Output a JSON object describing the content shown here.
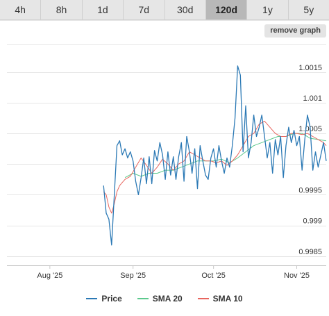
{
  "tabs": [
    {
      "label": "4h",
      "active": false
    },
    {
      "label": "8h",
      "active": false
    },
    {
      "label": "1d",
      "active": false
    },
    {
      "label": "7d",
      "active": false
    },
    {
      "label": "30d",
      "active": false
    },
    {
      "label": "120d",
      "active": true
    },
    {
      "label": "1y",
      "active": false
    },
    {
      "label": "5y",
      "active": false
    }
  ],
  "remove_graph_label": "remove graph",
  "chart_data": {
    "type": "line",
    "x_ticks": [
      "Aug '25",
      "Sep '25",
      "Oct '25",
      "Nov '25"
    ],
    "y_ticks": [
      0.9985,
      0.999,
      0.9995,
      1.0005,
      1.001,
      1.0015
    ],
    "y_tick_labels": [
      "0.9985",
      "0.999",
      "0.9995",
      "1.0005",
      "1.001",
      "1.0015"
    ],
    "ylim": [
      0.99835,
      1.00195
    ],
    "xlim": [
      "2025-07-16",
      "2025-11-12"
    ],
    "grid": true,
    "legend_position": "bottom",
    "series": [
      {
        "name": "Price",
        "color": "#2b79b5",
        "points": [
          [
            "2025-08-21",
            0.99965
          ],
          [
            "2025-08-22",
            0.9992
          ],
          [
            "2025-08-23",
            0.9991
          ],
          [
            "2025-08-24",
            0.99868
          ],
          [
            "2025-08-25",
            0.99948
          ],
          [
            "2025-08-26",
            1.0003
          ],
          [
            "2025-08-27",
            1.00038
          ],
          [
            "2025-08-28",
            1.00015
          ],
          [
            "2025-08-29",
            1.00025
          ],
          [
            "2025-08-30",
            1.0001
          ],
          [
            "2025-08-31",
            1.0002
          ],
          [
            "2025-09-01",
            1.00005
          ],
          [
            "2025-09-02",
            0.99972
          ],
          [
            "2025-09-03",
            0.9995
          ],
          [
            "2025-09-04",
            0.99978
          ],
          [
            "2025-09-05",
            1.0001
          ],
          [
            "2025-09-06",
            0.99968
          ],
          [
            "2025-09-07",
            1.00012
          ],
          [
            "2025-09-08",
            0.99968
          ],
          [
            "2025-09-09",
            1.00022
          ],
          [
            "2025-09-10",
            1.00005
          ],
          [
            "2025-09-11",
            1.00035
          ],
          [
            "2025-09-12",
            1.00015
          ],
          [
            "2025-09-13",
            0.99975
          ],
          [
            "2025-09-14",
            1.0002
          ],
          [
            "2025-09-15",
            0.99982
          ],
          [
            "2025-09-16",
            1.00012
          ],
          [
            "2025-09-17",
            0.99975
          ],
          [
            "2025-09-18",
            1.00012
          ],
          [
            "2025-09-19",
            1.00035
          ],
          [
            "2025-09-20",
            0.99972
          ],
          [
            "2025-09-21",
            1.00045
          ],
          [
            "2025-09-22",
            1.0002
          ],
          [
            "2025-09-23",
            0.99985
          ],
          [
            "2025-09-24",
            1.00025
          ],
          [
            "2025-09-25",
            0.9996
          ],
          [
            "2025-09-26",
            1.0003
          ],
          [
            "2025-09-27",
            1.00005
          ],
          [
            "2025-09-28",
            0.99982
          ],
          [
            "2025-09-29",
            0.99975
          ],
          [
            "2025-09-30",
            1.0001
          ],
          [
            "2025-10-01",
            1.00025
          ],
          [
            "2025-10-02",
            0.99995
          ],
          [
            "2025-10-03",
            1.0003
          ],
          [
            "2025-10-04",
            1.00005
          ],
          [
            "2025-10-05",
            0.99985
          ],
          [
            "2025-10-06",
            1.0001
          ],
          [
            "2025-10-07",
            0.99995
          ],
          [
            "2025-10-08",
            1.0003
          ],
          [
            "2025-10-09",
            1.00075
          ],
          [
            "2025-10-10",
            1.0016
          ],
          [
            "2025-10-11",
            1.00145
          ],
          [
            "2025-10-12",
            1.0002
          ],
          [
            "2025-10-13",
            1.00095
          ],
          [
            "2025-10-14",
            1.0001
          ],
          [
            "2025-10-15",
            1.00035
          ],
          [
            "2025-10-16",
            1.0008
          ],
          [
            "2025-10-17",
            1.00045
          ],
          [
            "2025-10-18",
            1.0006
          ],
          [
            "2025-10-19",
            1.0008
          ],
          [
            "2025-10-20",
            1.00045
          ],
          [
            "2025-10-21",
            1.0001
          ],
          [
            "2025-10-22",
            1.00035
          ],
          [
            "2025-10-23",
            0.99985
          ],
          [
            "2025-10-24",
            1.0004
          ],
          [
            "2025-10-25",
            1.00015
          ],
          [
            "2025-10-26",
            1.00045
          ],
          [
            "2025-10-27",
            0.99978
          ],
          [
            "2025-10-28",
            1.0003
          ],
          [
            "2025-10-29",
            1.0006
          ],
          [
            "2025-10-30",
            1.00035
          ],
          [
            "2025-10-31",
            1.00055
          ],
          [
            "2025-11-01",
            1.0003
          ],
          [
            "2025-11-02",
            1.00045
          ],
          [
            "2025-11-03",
            0.9999
          ],
          [
            "2025-11-04",
            1.0004
          ],
          [
            "2025-11-05",
            1.0008
          ],
          [
            "2025-11-06",
            1.0006
          ],
          [
            "2025-11-07",
            0.9999
          ],
          [
            "2025-11-08",
            1.0002
          ],
          [
            "2025-11-09",
            0.99995
          ],
          [
            "2025-11-10",
            1.00015
          ],
          [
            "2025-11-11",
            1.00035
          ],
          [
            "2025-11-12",
            1.00005
          ]
        ]
      },
      {
        "name": "SMA 20",
        "color": "#5cc98d",
        "points": [
          [
            "2025-08-29",
            0.99978
          ],
          [
            "2025-09-01",
            0.99985
          ],
          [
            "2025-09-04",
            0.9998
          ],
          [
            "2025-09-07",
            0.99985
          ],
          [
            "2025-09-10",
            0.99985
          ],
          [
            "2025-09-13",
            0.9999
          ],
          [
            "2025-09-16",
            0.9999
          ],
          [
            "2025-09-19",
            0.99995
          ],
          [
            "2025-09-22",
            1.0
          ],
          [
            "2025-09-25",
            1.00005
          ],
          [
            "2025-09-28",
            1.00005
          ],
          [
            "2025-10-01",
            1.00005
          ],
          [
            "2025-10-04",
            1.00008
          ],
          [
            "2025-10-07",
            1.00002
          ],
          [
            "2025-10-10",
            1.0001
          ],
          [
            "2025-10-13",
            1.0002
          ],
          [
            "2025-10-16",
            1.0003
          ],
          [
            "2025-10-19",
            1.00035
          ],
          [
            "2025-10-22",
            1.0004
          ],
          [
            "2025-10-25",
            1.00045
          ],
          [
            "2025-10-28",
            1.00045
          ],
          [
            "2025-10-31",
            1.0005
          ],
          [
            "2025-11-03",
            1.0005
          ],
          [
            "2025-11-06",
            1.00042
          ],
          [
            "2025-11-09",
            1.0004
          ],
          [
            "2025-11-12",
            1.00038
          ]
        ]
      },
      {
        "name": "SMA 10",
        "color": "#e8655e",
        "points": [
          [
            "2025-08-21",
            0.99955
          ],
          [
            "2025-08-22",
            0.9995
          ],
          [
            "2025-08-23",
            0.9993
          ],
          [
            "2025-08-24",
            0.9992
          ],
          [
            "2025-08-25",
            0.99935
          ],
          [
            "2025-08-26",
            0.99955
          ],
          [
            "2025-08-27",
            0.99965
          ],
          [
            "2025-08-28",
            0.9997
          ],
          [
            "2025-08-29",
            0.99975
          ],
          [
            "2025-08-31",
            0.9998
          ],
          [
            "2025-09-02",
            0.99995
          ],
          [
            "2025-09-04",
            1.0001
          ],
          [
            "2025-09-06",
            0.99998
          ],
          [
            "2025-09-08",
            0.99985
          ],
          [
            "2025-09-10",
            0.99995
          ],
          [
            "2025-09-12",
            1.00008
          ],
          [
            "2025-09-14",
            1.0
          ],
          [
            "2025-09-16",
            0.9999
          ],
          [
            "2025-09-18",
            1.0
          ],
          [
            "2025-09-20",
            1.00005
          ],
          [
            "2025-09-22",
            1.0002
          ],
          [
            "2025-09-24",
            1.00015
          ],
          [
            "2025-09-26",
            1.0001
          ],
          [
            "2025-09-28",
            1.00005
          ],
          [
            "2025-09-30",
            1.00005
          ],
          [
            "2025-10-02",
            1.00002
          ],
          [
            "2025-10-04",
            1.00005
          ],
          [
            "2025-10-06",
            0.99998
          ],
          [
            "2025-10-08",
            1.00005
          ],
          [
            "2025-10-10",
            1.00015
          ],
          [
            "2025-10-12",
            1.0003
          ],
          [
            "2025-10-14",
            1.00045
          ],
          [
            "2025-10-16",
            1.0005
          ],
          [
            "2025-10-18",
            1.00065
          ],
          [
            "2025-10-20",
            1.0007
          ],
          [
            "2025-10-22",
            1.0006
          ],
          [
            "2025-10-24",
            1.0005
          ],
          [
            "2025-10-26",
            1.00045
          ],
          [
            "2025-10-28",
            1.00045
          ],
          [
            "2025-10-30",
            1.0005
          ],
          [
            "2025-11-01",
            1.0005
          ],
          [
            "2025-11-03",
            1.00048
          ],
          [
            "2025-11-05",
            1.0005
          ],
          [
            "2025-11-07",
            1.00045
          ],
          [
            "2025-11-09",
            1.0004
          ],
          [
            "2025-11-11",
            1.00035
          ],
          [
            "2025-11-12",
            1.0003
          ]
        ]
      }
    ]
  }
}
